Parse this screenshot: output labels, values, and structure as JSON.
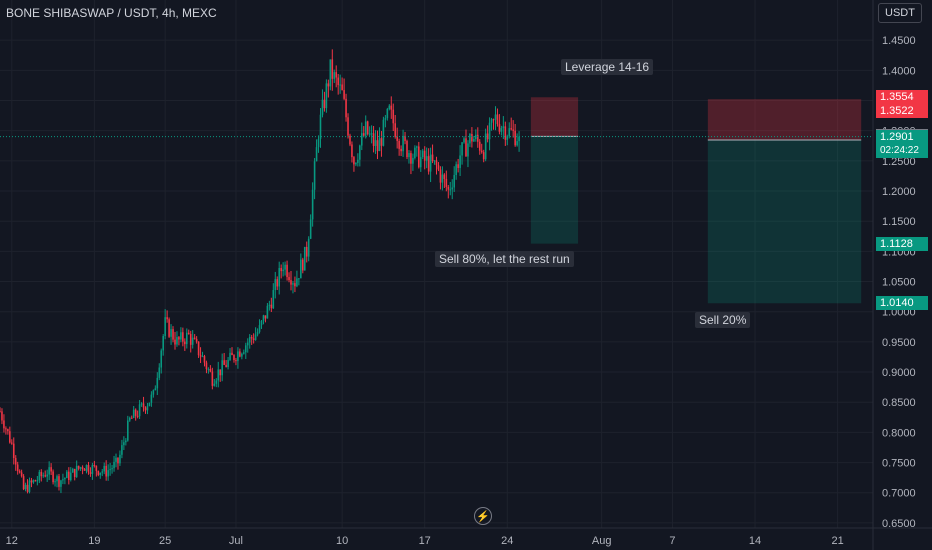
{
  "header": {
    "title": "BONE SHIBASWAP / USDT, 4h, MEXC",
    "currency_button": "USDT"
  },
  "annotations": {
    "leverage": "Leverage 14-16",
    "sell_80": "Sell 80%, let the rest run",
    "sell_20": "Sell 20%"
  },
  "price_tags": [
    {
      "value": "1.3554",
      "color": "#f23645"
    },
    {
      "value": "1.3522",
      "color": "#f23645"
    },
    {
      "value": "1.2905",
      "color": "#787b86"
    },
    {
      "value": "1.2901",
      "color": "#089981"
    },
    {
      "value": "1.2845",
      "color": "#787b86"
    },
    {
      "value": "1.1128",
      "color": "#089981"
    },
    {
      "value": "1.0140",
      "color": "#089981"
    }
  ],
  "countdown": "02:24:22",
  "colors": {
    "up": "#089981",
    "down": "#f23645",
    "background": "#131722",
    "grid": "#1e222d",
    "axis_text": "#b2b5be"
  },
  "chart_data": {
    "type": "candlestick",
    "timeframe": "4h",
    "exchange": "MEXC",
    "y_axis": {
      "range": [
        0.625,
        1.5
      ],
      "ticks": [
        0.65,
        0.7,
        0.75,
        0.8,
        0.85,
        0.9,
        0.95,
        1.0,
        1.05,
        1.1,
        1.15,
        1.2,
        1.25,
        1.3,
        1.35,
        1.4,
        1.45
      ],
      "tick_labels": [
        "0.6500",
        "0.7000",
        "0.7500",
        "0.8000",
        "0.8500",
        "0.9000",
        "0.9500",
        "1.0000",
        "1.0500",
        "1.1000",
        "1.1500",
        "1.2000",
        "1.2500",
        "1.3000",
        "1.3500",
        "1.4000",
        "1.4500"
      ]
    },
    "x_axis": {
      "range": [
        "2023-06-11",
        "2023-08-24"
      ],
      "ticks": [
        "2023-06-12",
        "2023-06-19",
        "2023-06-25",
        "2023-07-01",
        "2023-07-10",
        "2023-07-17",
        "2023-07-24",
        "2023-08-01",
        "2023-08-07",
        "2023-08-14",
        "2023-08-21"
      ],
      "tick_labels": [
        "12",
        "19",
        "25",
        "Jul",
        "10",
        "17",
        "24",
        "Aug",
        "7",
        "14",
        "21"
      ]
    },
    "current_price": 1.2901,
    "price_path": [
      [
        "2023-06-11",
        0.835
      ],
      [
        "2023-06-12",
        0.78
      ],
      [
        "2023-06-13",
        0.705
      ],
      [
        "2023-06-14",
        0.72
      ],
      [
        "2023-06-15",
        0.735
      ],
      [
        "2023-06-16",
        0.72
      ],
      [
        "2023-06-17",
        0.73
      ],
      [
        "2023-06-18",
        0.745
      ],
      [
        "2023-06-19",
        0.74
      ],
      [
        "2023-06-20",
        0.735
      ],
      [
        "2023-06-21",
        0.75
      ],
      [
        "2023-06-22",
        0.82
      ],
      [
        "2023-06-23",
        0.84
      ],
      [
        "2023-06-24",
        0.86
      ],
      [
        "2023-06-25",
        0.98
      ],
      [
        "2023-06-26",
        0.95
      ],
      [
        "2023-06-27",
        0.96
      ],
      [
        "2023-06-28",
        0.93
      ],
      [
        "2023-06-29",
        0.89
      ],
      [
        "2023-06-30",
        0.91
      ],
      [
        "2023-07-01",
        0.93
      ],
      [
        "2023-07-02",
        0.95
      ],
      [
        "2023-07-03",
        0.97
      ],
      [
        "2023-07-04",
        1.02
      ],
      [
        "2023-07-05",
        1.08
      ],
      [
        "2023-07-06",
        1.05
      ],
      [
        "2023-07-07",
        1.1
      ],
      [
        "2023-07-08",
        1.3
      ],
      [
        "2023-07-09",
        1.4
      ],
      [
        "2023-07-10",
        1.36
      ],
      [
        "2023-07-11",
        1.25
      ],
      [
        "2023-07-12",
        1.3
      ],
      [
        "2023-07-13",
        1.27
      ],
      [
        "2023-07-14",
        1.33
      ],
      [
        "2023-07-15",
        1.28
      ],
      [
        "2023-07-16",
        1.26
      ],
      [
        "2023-07-17",
        1.25
      ],
      [
        "2023-07-18",
        1.24
      ],
      [
        "2023-07-19",
        1.2
      ],
      [
        "2023-07-20",
        1.26
      ],
      [
        "2023-07-21",
        1.29
      ],
      [
        "2023-07-22",
        1.27
      ],
      [
        "2023-07-23",
        1.32
      ],
      [
        "2023-07-24",
        1.3
      ],
      [
        "2023-07-25",
        1.29
      ]
    ],
    "positions": [
      {
        "name": "short-position-1",
        "start": "2023-07-26",
        "end": "2023-07-30",
        "stop": 1.3554,
        "entry": 1.2905,
        "target": 1.1128
      },
      {
        "name": "short-position-2",
        "start": "2023-08-10",
        "end": "2023-08-23",
        "stop": 1.3522,
        "entry": 1.2845,
        "target": 1.014
      }
    ]
  }
}
